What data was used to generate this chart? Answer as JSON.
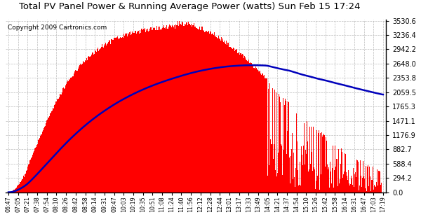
{
  "title": "Total PV Panel Power & Running Average Power (watts) Sun Feb 15 17:24",
  "copyright": "Copyright 2009 Cartronics.com",
  "yticks": [
    0.0,
    294.2,
    588.4,
    882.7,
    1176.9,
    1471.1,
    1765.3,
    2059.5,
    2353.8,
    2648.0,
    2942.2,
    3236.4,
    3530.6
  ],
  "ymax": 3530.6,
  "bar_color": "#FF0000",
  "avg_color": "#0000BB",
  "bg_color": "#FFFFFF",
  "grid_color": "#BBBBBB",
  "title_fontsize": 9.5,
  "copyright_fontsize": 6.5,
  "xtick_labels": [
    "06:47",
    "07:05",
    "07:21",
    "07:38",
    "07:54",
    "08:10",
    "08:26",
    "08:42",
    "08:58",
    "09:14",
    "09:31",
    "09:47",
    "10:03",
    "10:19",
    "10:35",
    "10:51",
    "11:08",
    "11:24",
    "11:40",
    "11:56",
    "12:12",
    "12:28",
    "12:44",
    "13:01",
    "13:17",
    "13:33",
    "13:49",
    "14:05",
    "14:21",
    "14:37",
    "14:54",
    "15:10",
    "15:26",
    "15:42",
    "15:58",
    "16:14",
    "16:31",
    "16:47",
    "17:03",
    "17:19"
  ]
}
